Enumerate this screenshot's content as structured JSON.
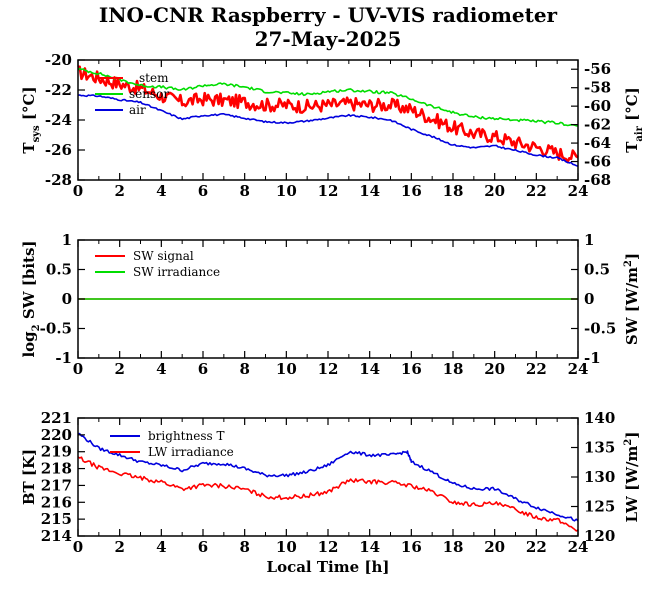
{
  "title": "INO-CNR Raspberry - UV-VIS radiometer",
  "subtitle": "27-May-2025",
  "colors": {
    "red": "#ff0000",
    "green": "#00dd00",
    "blue": "#0000dd",
    "axis": "#000000"
  },
  "chart_data": [
    {
      "type": "line",
      "panel": "temperature",
      "x_range": [
        0,
        24
      ],
      "x_ticks": [
        "0",
        "2",
        "4",
        "6",
        "8",
        "10",
        "12",
        "14",
        "16",
        "18",
        "20",
        "22",
        "24"
      ],
      "left_axis": {
        "label_main": "T",
        "label_sub": "sys",
        "label_unit": "[°C]",
        "range": [
          -28,
          -20
        ],
        "ticks": [
          "-20",
          "-22",
          "-24",
          "-26",
          "-28"
        ]
      },
      "right_axis": {
        "label_main": "T",
        "label_sub": "air",
        "label_unit": "[°C]",
        "range": [
          -68,
          -55
        ],
        "ticks": [
          "-56",
          "-58",
          "-60",
          "-62",
          "-64",
          "-66",
          "-68"
        ]
      },
      "legend": [
        "stem",
        "sensor",
        "air"
      ],
      "series": [
        {
          "name": "stem",
          "color": "red",
          "axis": "left",
          "x": [
            0,
            1,
            2,
            3,
            4,
            5,
            6,
            7,
            8,
            9,
            10,
            11,
            12,
            13,
            14,
            15,
            16,
            17,
            18,
            19,
            20,
            21,
            22,
            23,
            24
          ],
          "values": [
            -20.8,
            -21.2,
            -21.6,
            -21.9,
            -22.4,
            -22.8,
            -22.6,
            -22.7,
            -22.8,
            -23.0,
            -23.0,
            -23.1,
            -23.0,
            -22.9,
            -23.0,
            -23.0,
            -23.3,
            -23.9,
            -24.5,
            -24.9,
            -25.1,
            -25.5,
            -25.8,
            -26.2,
            -26.5
          ]
        },
        {
          "name": "sensor",
          "color": "green",
          "axis": "left",
          "x": [
            0,
            1,
            2,
            3,
            4,
            5,
            6,
            7,
            8,
            9,
            10,
            11,
            12,
            13,
            14,
            15,
            16,
            17,
            18,
            19,
            20,
            21,
            22,
            23,
            24
          ],
          "values": [
            -20.6,
            -20.9,
            -21.3,
            -21.7,
            -21.8,
            -22.0,
            -21.7,
            -21.6,
            -21.8,
            -22.1,
            -22.2,
            -22.3,
            -22.1,
            -22.0,
            -22.1,
            -22.2,
            -22.6,
            -23.1,
            -23.5,
            -23.8,
            -23.9,
            -24.0,
            -24.1,
            -24.2,
            -24.4
          ]
        },
        {
          "name": "air",
          "color": "blue",
          "axis": "right",
          "x": [
            0,
            1,
            2,
            3,
            4,
            5,
            6,
            7,
            8,
            9,
            10,
            11,
            12,
            13,
            14,
            15,
            16,
            17,
            18,
            19,
            20,
            21,
            22,
            23,
            24
          ],
          "values": [
            -58.8,
            -58.9,
            -59.3,
            -59.6,
            -60.5,
            -61.4,
            -61.0,
            -60.9,
            -61.3,
            -61.7,
            -61.8,
            -61.6,
            -61.3,
            -61.0,
            -61.2,
            -61.5,
            -62.5,
            -63.3,
            -64.2,
            -64.5,
            -64.3,
            -64.8,
            -65.3,
            -65.6,
            -66.5
          ]
        }
      ]
    },
    {
      "type": "line",
      "panel": "shortwave",
      "x_range": [
        0,
        24
      ],
      "x_ticks": [
        "0",
        "2",
        "4",
        "6",
        "8",
        "10",
        "12",
        "14",
        "16",
        "18",
        "20",
        "22",
        "24"
      ],
      "left_axis": {
        "label_main": "log",
        "label_sub": "2",
        "label_unit": "SW [bits]",
        "range": [
          -1,
          1
        ],
        "ticks": [
          "1",
          "0.5",
          "0",
          "-0.5",
          "-1"
        ]
      },
      "right_axis": {
        "label_main": "SW [W/m",
        "label_sup": "2",
        "label_unit": "]",
        "range": [
          -1,
          1
        ],
        "ticks": [
          "1",
          "0.5",
          "0",
          "-0.5",
          "-1"
        ]
      },
      "legend": [
        "SW signal",
        "SW irradiance"
      ],
      "series": [
        {
          "name": "SW signal",
          "color": "red",
          "x": [
            0,
            24
          ],
          "values": [
            0,
            0
          ]
        },
        {
          "name": "SW irradiance",
          "color": "green",
          "x": [
            0,
            24
          ],
          "values": [
            0,
            0
          ]
        }
      ]
    },
    {
      "type": "line",
      "panel": "longwave",
      "x_range": [
        0,
        24
      ],
      "x_ticks": [
        "0",
        "2",
        "4",
        "6",
        "8",
        "10",
        "12",
        "14",
        "16",
        "18",
        "20",
        "22",
        "24"
      ],
      "xlabel": "Local Time [h]",
      "left_axis": {
        "label_main": "BT [K]",
        "range": [
          214,
          221
        ],
        "ticks": [
          "221",
          "220",
          "219",
          "218",
          "217",
          "216",
          "215",
          "214"
        ]
      },
      "right_axis": {
        "label_main": "LW [W/m",
        "label_sup": "2",
        "label_unit": "]",
        "range": [
          120,
          140
        ],
        "ticks": [
          "140",
          "135",
          "130",
          "125",
          "120"
        ]
      },
      "legend": [
        "brightness T",
        "LW irradiance"
      ],
      "series": [
        {
          "name": "brightness T",
          "color": "blue",
          "axis": "left",
          "x": [
            0,
            1,
            2,
            3,
            4,
            5,
            6,
            7,
            8,
            9,
            10,
            11,
            12,
            13,
            14,
            15,
            15.8,
            16,
            17,
            18,
            19,
            20,
            21,
            22,
            23,
            24
          ],
          "values": [
            220.1,
            219.2,
            218.8,
            218.4,
            218.2,
            217.9,
            218.3,
            218.3,
            218.0,
            217.6,
            217.6,
            217.8,
            218.2,
            219.0,
            218.8,
            218.8,
            219.0,
            218.4,
            217.8,
            217.1,
            216.8,
            216.8,
            216.2,
            215.7,
            215.3,
            214.9
          ]
        },
        {
          "name": "LW irradiance",
          "color": "red",
          "axis": "right",
          "x": [
            0,
            1,
            2,
            3,
            4,
            5,
            6,
            7,
            8,
            9,
            10,
            11,
            12,
            13,
            14,
            15,
            16,
            17,
            18,
            19,
            20,
            21,
            22,
            23,
            24
          ],
          "values": [
            133.3,
            131.6,
            130.6,
            129.8,
            129.2,
            128.0,
            128.6,
            128.5,
            127.9,
            126.7,
            126.5,
            126.8,
            127.5,
            129.4,
            129.2,
            129.1,
            128.5,
            127.5,
            125.7,
            125.3,
            125.5,
            124.5,
            123.2,
            122.7,
            121.0
          ]
        }
      ]
    }
  ]
}
